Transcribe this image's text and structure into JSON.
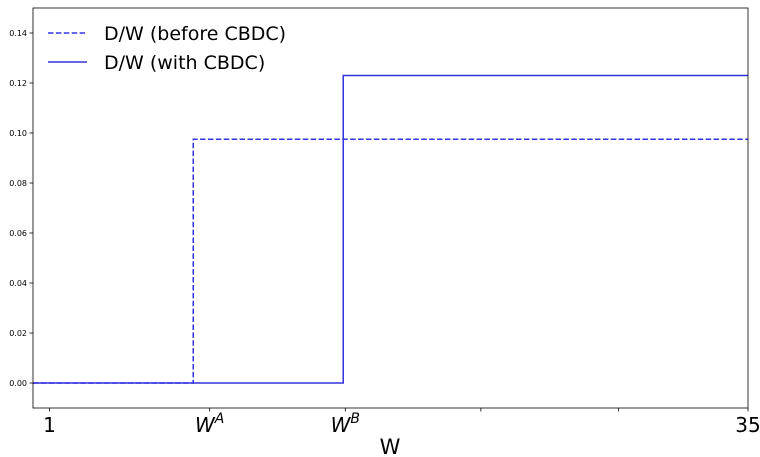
{
  "chart_data": {
    "type": "line",
    "title": "",
    "xlabel": "W",
    "ylabel": "",
    "xlim": [
      0.2,
      35
    ],
    "ylim": [
      -0.01,
      0.15
    ],
    "grid": false,
    "legend_position": "top-left",
    "x_ticks": [
      {
        "value": 1,
        "label": "1",
        "math": false
      },
      {
        "value": 8.8,
        "label": "W",
        "sup": "A",
        "math": true
      },
      {
        "value": 15.4,
        "label": "W",
        "sup": "B",
        "math": true
      },
      {
        "value": 22.0,
        "label": "",
        "math": false
      },
      {
        "value": 28.7,
        "label": "",
        "math": false
      },
      {
        "value": 35,
        "label": "35",
        "math": false
      }
    ],
    "y_ticks": [
      "0.00",
      "0.02",
      "0.04",
      "0.06",
      "0.08",
      "0.10",
      "0.12",
      "0.14"
    ],
    "series": [
      {
        "name": "D/W (before CBDC)",
        "style": "dashed",
        "color": "#3333dd",
        "points": [
          [
            0.2,
            0.0
          ],
          [
            8.0,
            0.0
          ],
          [
            8.0,
            0.0975
          ],
          [
            35,
            0.0975
          ]
        ]
      },
      {
        "name": "D/W (with CBDC)",
        "style": "solid",
        "color": "#3333dd",
        "points": [
          [
            0.2,
            0.0
          ],
          [
            15.3,
            0.0
          ],
          [
            15.3,
            0.123
          ],
          [
            35,
            0.123
          ]
        ]
      }
    ]
  }
}
